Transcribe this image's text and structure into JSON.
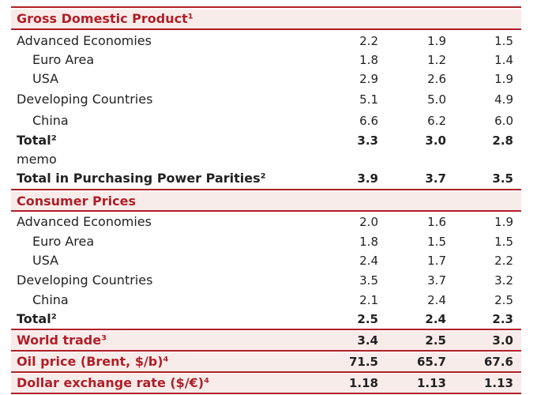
{
  "gdp": {
    "title": "Gross Domestic Product¹",
    "rows": [
      {
        "label": "Advanced Economies",
        "values": [
          "2.2",
          "1.9",
          "1.5"
        ]
      },
      {
        "label": "Euro Area",
        "values": [
          "1.8",
          "1.2",
          "1.4"
        ]
      },
      {
        "label": "USA",
        "values": [
          "2.9",
          "2.6",
          "1.9"
        ]
      },
      {
        "label": "Developing Countries",
        "values": [
          "5.1",
          "5.0",
          "4.9"
        ]
      },
      {
        "label": "China",
        "values": [
          "6.6",
          "6.2",
          "6.0"
        ]
      },
      {
        "label": "Total²",
        "values": [
          "3.3",
          "3.0",
          "2.8"
        ]
      },
      {
        "label": "memo",
        "values": []
      },
      {
        "label": "Total in Purchasing Power Parities²",
        "values": [
          "3.9",
          "3.7",
          "3.5"
        ]
      }
    ]
  },
  "cpi": {
    "title": "Consumer Prices",
    "rows": [
      {
        "label": "Advanced Economies",
        "values": [
          "2.0",
          "1.6",
          "1.9"
        ]
      },
      {
        "label": "Euro Area",
        "values": [
          "1.8",
          "1.5",
          "1.5"
        ]
      },
      {
        "label": "USA",
        "values": [
          "2.4",
          "1.7",
          "2.2"
        ]
      },
      {
        "label": "Developing Countries",
        "values": [
          "3.5",
          "3.7",
          "3.2"
        ]
      },
      {
        "label": "China",
        "values": [
          "2.1",
          "2.4",
          "2.5"
        ]
      },
      {
        "label": "Total²",
        "values": [
          "2.5",
          "2.4",
          "2.3"
        ]
      }
    ]
  },
  "world_trade": {
    "label": "World trade³",
    "values": [
      "3.4",
      "2.5",
      "3.0"
    ]
  },
  "oil_price": {
    "label": "Oil price (Brent, $/b)⁴",
    "values": [
      "71.5",
      "65.7",
      "67.6"
    ]
  },
  "fx_rate": {
    "label": "Dollar exchange rate ($/€)⁴",
    "values": [
      "1.18",
      "1.13",
      "1.13"
    ]
  },
  "colors": {
    "accent": "#b01f28",
    "section_bg": "#f8ecea"
  }
}
